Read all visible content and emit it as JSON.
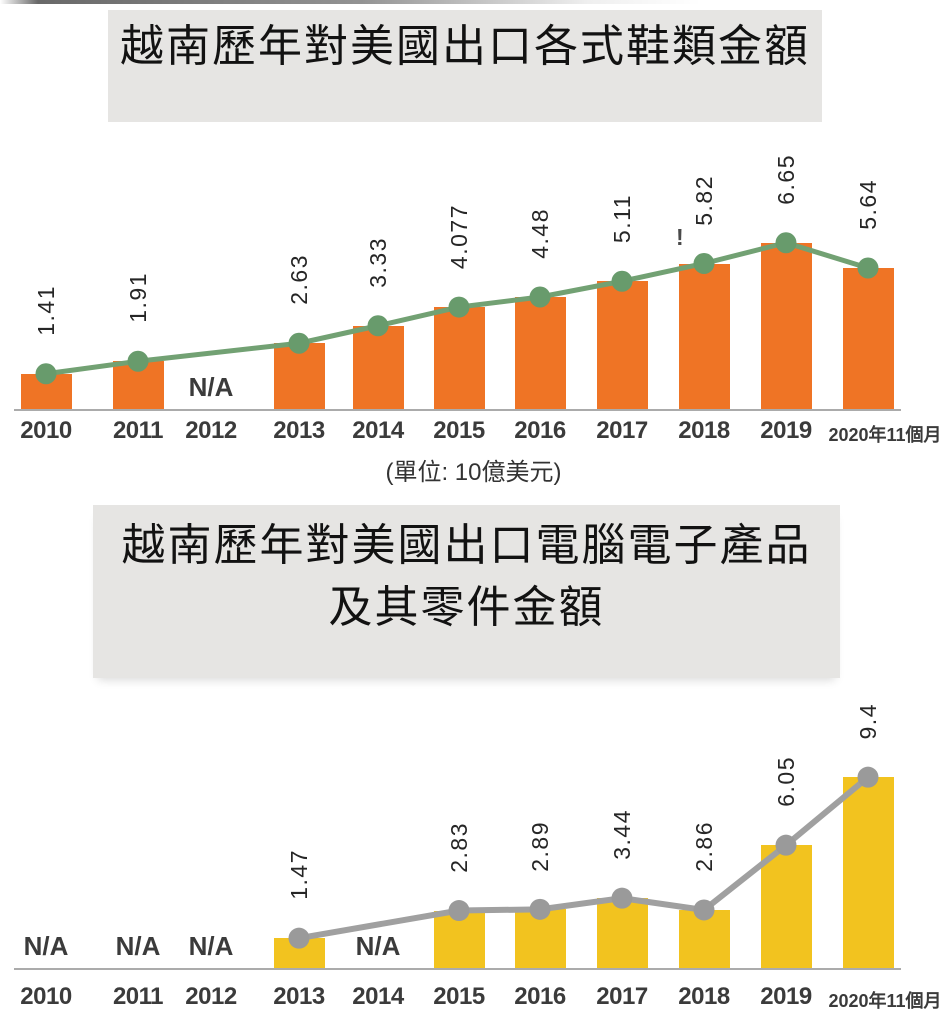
{
  "unit_label": "(單位: 10億美元)",
  "artifacts": {
    "exclamation_mark": "!"
  },
  "chart_data": [
    {
      "type": "bar",
      "overlay": "line",
      "title": "越南歷年對美國出口各式鞋類金額",
      "title_lines": [
        "越南歷年對美國出口各式鞋類金額"
      ],
      "categories": [
        "2010",
        "2011",
        "2012",
        "2013",
        "2014",
        "2015",
        "2016",
        "2017",
        "2018",
        "2019",
        "2020年11個月"
      ],
      "values": [
        1.41,
        1.91,
        null,
        2.63,
        3.33,
        4.077,
        4.48,
        5.11,
        5.82,
        6.65,
        5.64
      ],
      "value_labels": [
        "1.41",
        "1.91",
        null,
        "2.63",
        "3.33",
        "4.077",
        "4.48",
        "5.11",
        "5.82",
        "6.65",
        "5.64"
      ],
      "missing_label": "N/A",
      "unit": "10億美元",
      "ylim": [
        0,
        8
      ],
      "grid": false,
      "legend": "none",
      "bar_color": "#EF7425",
      "line_color": "#72A173",
      "marker_color": "#689B6C"
    },
    {
      "type": "bar",
      "overlay": "line",
      "title": "越南歷年對美國出口電腦電子產品及其零件金額",
      "title_lines": [
        "越南歷年對美國出口電腦電子產品",
        "及其零件金額"
      ],
      "categories": [
        "2010",
        "2011",
        "2012",
        "2013",
        "2014",
        "2015",
        "2016",
        "2017",
        "2018",
        "2019",
        "2020年11個月"
      ],
      "values": [
        null,
        null,
        null,
        1.47,
        null,
        2.83,
        2.89,
        3.44,
        2.86,
        6.05,
        9.4
      ],
      "value_labels": [
        null,
        null,
        null,
        "1.47",
        null,
        "2.83",
        "2.89",
        "3.44",
        "2.86",
        "6.05",
        "9.4"
      ],
      "missing_label": "N/A",
      "unit": "10億美元",
      "ylim": [
        0,
        10
      ],
      "grid": false,
      "legend": "none",
      "bar_color": "#F2C31F",
      "line_color": "#A0A0A0",
      "marker_color": "#9A9A9A"
    }
  ]
}
